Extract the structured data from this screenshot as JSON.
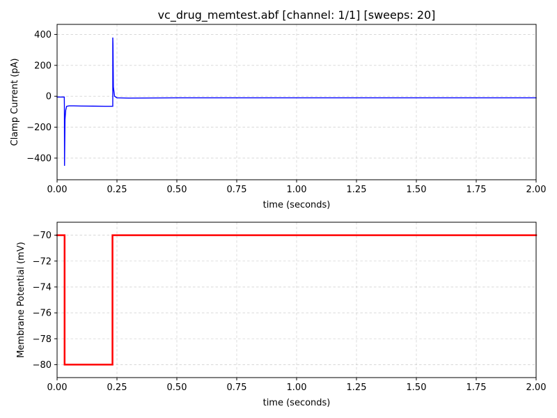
{
  "figure": {
    "title": "vc_drug_memtest.abf [channel: 1/1] [sweeps: 20]"
  },
  "chart_data": [
    {
      "type": "line",
      "title": "vc_drug_memtest.abf [channel: 1/1] [sweeps: 20]",
      "xlabel": "time (seconds)",
      "ylabel": "Clamp Current (pA)",
      "xlim": [
        0,
        2.0
      ],
      "ylim": [
        -540,
        465
      ],
      "xticks": [
        0.0,
        0.25,
        0.5,
        0.75,
        1.0,
        1.25,
        1.5,
        1.75,
        2.0
      ],
      "xtick_labels": [
        "0.00",
        "0.25",
        "0.50",
        "0.75",
        "1.00",
        "1.25",
        "1.50",
        "1.75",
        "2.00"
      ],
      "yticks": [
        400,
        200,
        0,
        -200,
        -400
      ],
      "ytick_labels": [
        "400",
        "200",
        "0",
        "−200",
        "−400"
      ],
      "grid": true,
      "color": "#0000ff",
      "series": [
        {
          "x": [
            0.0,
            0.03,
            0.0305,
            0.031,
            0.033,
            0.036,
            0.04,
            0.05,
            0.07,
            0.1,
            0.15,
            0.2,
            0.2325,
            0.2325,
            0.2333,
            0.235,
            0.24,
            0.25,
            0.3,
            0.5,
            1.0,
            1.5,
            2.0
          ],
          "y": [
            -5,
            -5,
            -60,
            -450,
            -150,
            -90,
            -65,
            -62,
            -62,
            -63,
            -64,
            -65,
            -65,
            380,
            340,
            60,
            0,
            -10,
            -12,
            -10,
            -10,
            -10,
            -10
          ]
        }
      ]
    },
    {
      "type": "line",
      "xlabel": "time (seconds)",
      "ylabel": "Membrane Potential (mV)",
      "xlim": [
        0,
        2.0
      ],
      "ylim": [
        -81,
        -69
      ],
      "xticks": [
        0.0,
        0.25,
        0.5,
        0.75,
        1.0,
        1.25,
        1.5,
        1.75,
        2.0
      ],
      "xtick_labels": [
        "0.00",
        "0.25",
        "0.50",
        "0.75",
        "1.00",
        "1.25",
        "1.50",
        "1.75",
        "2.00"
      ],
      "yticks": [
        -70,
        -72,
        -74,
        -76,
        -78,
        -80
      ],
      "ytick_labels": [
        "−70",
        "−72",
        "−74",
        "−76",
        "−78",
        "−80"
      ],
      "grid": true,
      "color": "#ff0000",
      "series": [
        {
          "x": [
            0.0,
            0.0313,
            0.0313,
            0.2313,
            0.2313,
            2.0
          ],
          "y": [
            -70,
            -70,
            -80,
            -80,
            -70,
            -70
          ]
        }
      ]
    }
  ]
}
